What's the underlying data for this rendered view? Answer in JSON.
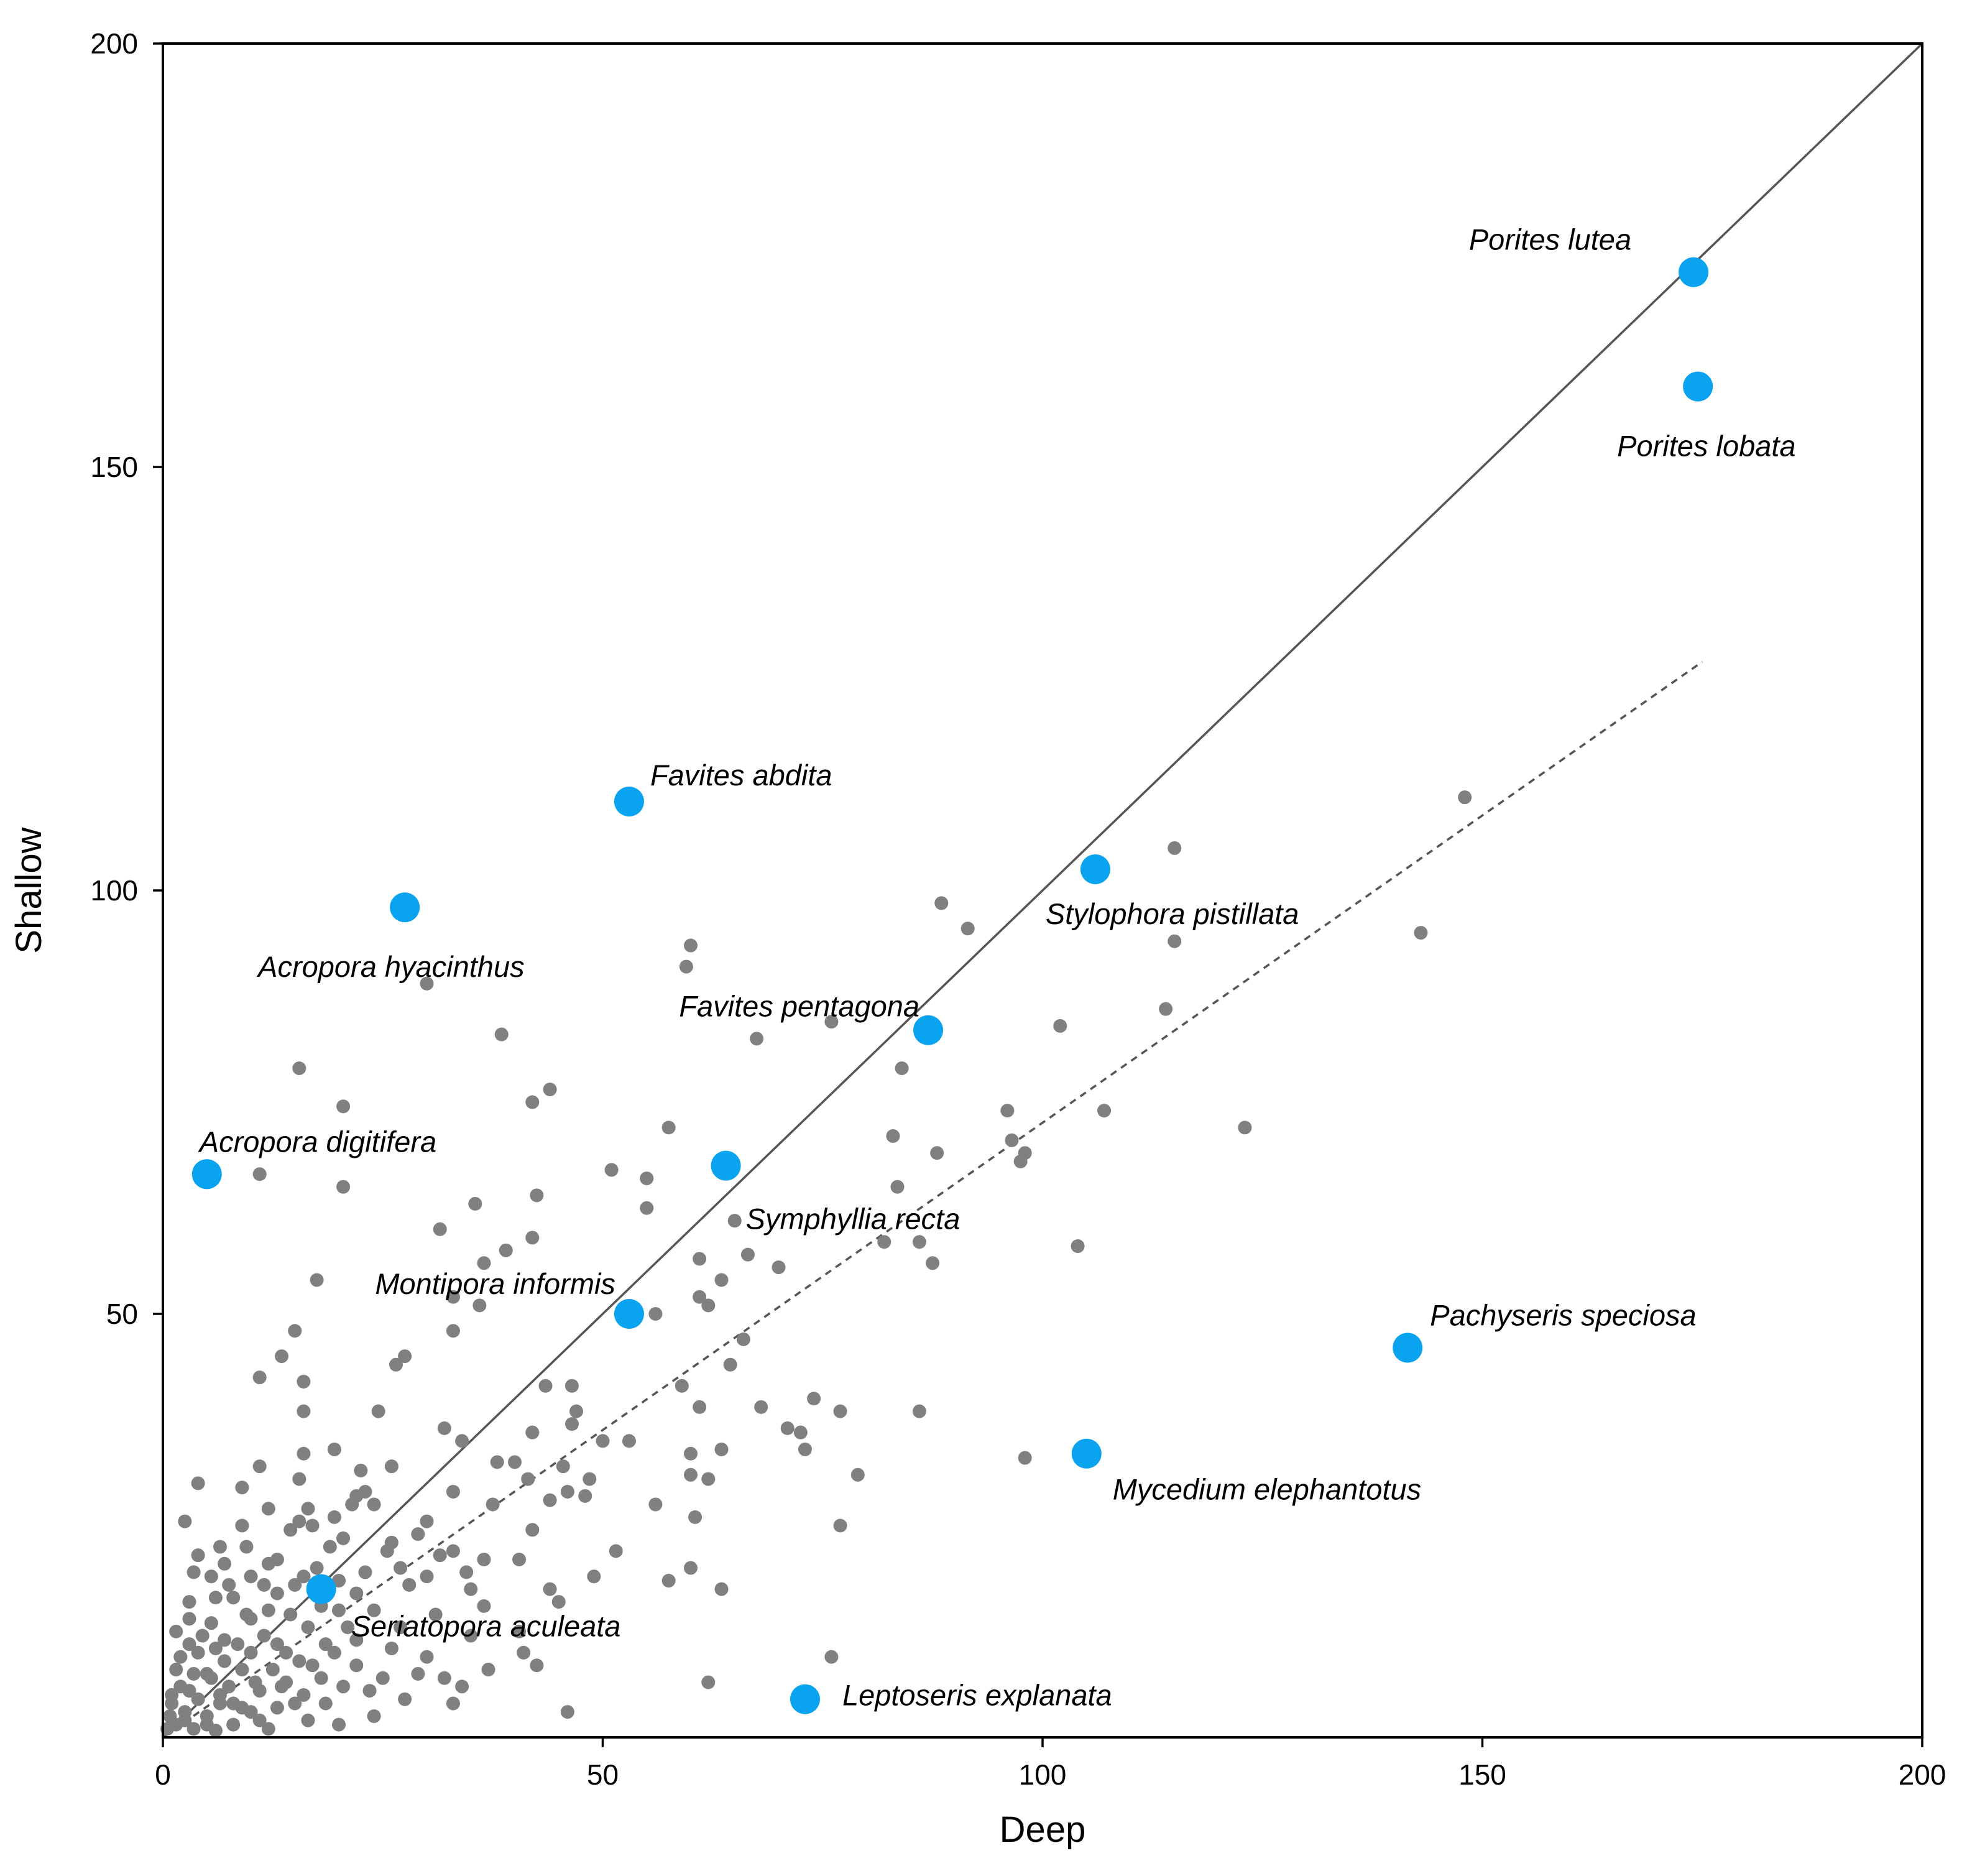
{
  "chart_data": {
    "type": "scatter",
    "title": "",
    "xlabel": "Deep",
    "ylabel": "Shallow",
    "xlim": [
      0,
      200
    ],
    "ylim": [
      0,
      200
    ],
    "x_ticks": [
      0,
      50,
      100,
      150,
      200
    ],
    "y_ticks": [
      0,
      50,
      100,
      150,
      200
    ],
    "x_tick_labels": [
      "0",
      "50",
      "100",
      "150",
      "200"
    ],
    "y_tick_labels": [
      "0",
      "50",
      "100",
      "150",
      "200"
    ],
    "grid": false,
    "colors": {
      "highlight": "#0aa3f0",
      "background_points": "#808080",
      "line": "#555555"
    },
    "lines": [
      {
        "name": "1:1 line",
        "style": "solid",
        "x": [
          0,
          200
        ],
        "y": [
          0,
          200
        ]
      },
      {
        "name": "regression fit",
        "style": "dashed",
        "x": [
          0,
          175
        ],
        "y": [
          0,
          127
        ]
      }
    ],
    "highlighted_species": [
      {
        "name": "Porites lutea",
        "x": 174,
        "y": 173,
        "label_side": "above-left"
      },
      {
        "name": "Porites lobata",
        "x": 174.5,
        "y": 159.5,
        "label_side": "below-left"
      },
      {
        "name": "Favites abdita",
        "x": 53,
        "y": 110.5,
        "label_side": "above-right"
      },
      {
        "name": "Stylophora pistillata",
        "x": 106,
        "y": 102.5,
        "label_side": "below"
      },
      {
        "name": "Acropora hyacinthus",
        "x": 27.5,
        "y": 98,
        "label_side": "below"
      },
      {
        "name": "Favites pentagona",
        "x": 87,
        "y": 83.5,
        "label_side": "above-left"
      },
      {
        "name": "Symphyllia recta",
        "x": 64,
        "y": 67.5,
        "label_side": "below-right"
      },
      {
        "name": "Acropora digitifera",
        "x": 5,
        "y": 66.5,
        "label_side": "above-right"
      },
      {
        "name": "Montipora informis",
        "x": 53,
        "y": 50,
        "label_side": "above-left"
      },
      {
        "name": "Pachyseris speciosa",
        "x": 141.5,
        "y": 46,
        "label_side": "above-right"
      },
      {
        "name": "Mycedium elephantotus",
        "x": 105,
        "y": 33.5,
        "label_side": "below-right"
      },
      {
        "name": "Seriatopora aculeata",
        "x": 18,
        "y": 17.5,
        "label_side": "below-right"
      },
      {
        "name": "Leptoseris explanata",
        "x": 73,
        "y": 4.5,
        "label_side": "right"
      }
    ],
    "background_points": [
      [
        148,
        111
      ],
      [
        115,
        105
      ],
      [
        88.5,
        98.5
      ],
      [
        91.5,
        95.5
      ],
      [
        143,
        95
      ],
      [
        60,
        93.5
      ],
      [
        115,
        94
      ],
      [
        59.5,
        91
      ],
      [
        30,
        89
      ],
      [
        114,
        86
      ],
      [
        38.5,
        83
      ],
      [
        76,
        84.5
      ],
      [
        102,
        84
      ],
      [
        67.5,
        82.5
      ],
      [
        84,
        79
      ],
      [
        15.5,
        79
      ],
      [
        44,
        76.5
      ],
      [
        42,
        75
      ],
      [
        20.5,
        74.5
      ],
      [
        107,
        74
      ],
      [
        96,
        74
      ],
      [
        123,
        72
      ],
      [
        57.5,
        72
      ],
      [
        83,
        71
      ],
      [
        96.5,
        70.5
      ],
      [
        98,
        69
      ],
      [
        88,
        69
      ],
      [
        97.5,
        68
      ],
      [
        51,
        67
      ],
      [
        55,
        66
      ],
      [
        11,
        66.5
      ],
      [
        20.5,
        65
      ],
      [
        83.5,
        65
      ],
      [
        42.5,
        64
      ],
      [
        35.5,
        63
      ],
      [
        55,
        62.5
      ],
      [
        65,
        61
      ],
      [
        31.5,
        60
      ],
      [
        42,
        59
      ],
      [
        82,
        58.5
      ],
      [
        86,
        58.5
      ],
      [
        104,
        58
      ],
      [
        39,
        57.5
      ],
      [
        66.5,
        57
      ],
      [
        61,
        56.5
      ],
      [
        36.5,
        56
      ],
      [
        87.5,
        56
      ],
      [
        70,
        55.5
      ],
      [
        17.5,
        54
      ],
      [
        63.5,
        54
      ],
      [
        61,
        52
      ],
      [
        33,
        52
      ],
      [
        62,
        51
      ],
      [
        36,
        51
      ],
      [
        56,
        50
      ],
      [
        33,
        48
      ],
      [
        15,
        48
      ],
      [
        66,
        47
      ],
      [
        13.5,
        45
      ],
      [
        27.5,
        45
      ],
      [
        26.5,
        44
      ],
      [
        64.5,
        44
      ],
      [
        11,
        42.5
      ],
      [
        16,
        42
      ],
      [
        46.5,
        41.5
      ],
      [
        43.5,
        41.5
      ],
      [
        59,
        41.5
      ],
      [
        74,
        40
      ],
      [
        61,
        39
      ],
      [
        68,
        39
      ],
      [
        47,
        38.5
      ],
      [
        16,
        38.5
      ],
      [
        24.5,
        38.5
      ],
      [
        77,
        38.5
      ],
      [
        86,
        38.5
      ],
      [
        71,
        36.5
      ],
      [
        32,
        36.5
      ],
      [
        46.5,
        37
      ],
      [
        42,
        36
      ],
      [
        72.5,
        36
      ],
      [
        50,
        35
      ],
      [
        53,
        35
      ],
      [
        34,
        35
      ],
      [
        73,
        34
      ],
      [
        19.5,
        34
      ],
      [
        63.5,
        34
      ],
      [
        60,
        33.5
      ],
      [
        16,
        33.5
      ],
      [
        98,
        33
      ],
      [
        38,
        32.5
      ],
      [
        40,
        32.5
      ],
      [
        45.5,
        32
      ],
      [
        11,
        32
      ],
      [
        26,
        32
      ],
      [
        22.5,
        31.5
      ],
      [
        60,
        31
      ],
      [
        79,
        31
      ],
      [
        48.5,
        30.5
      ],
      [
        62,
        30.5
      ],
      [
        15.5,
        30.5
      ],
      [
        41.5,
        30.5
      ],
      [
        4,
        30
      ],
      [
        9,
        29.5
      ],
      [
        23,
        29
      ],
      [
        22,
        28.5
      ],
      [
        33,
        29
      ],
      [
        46,
        29
      ],
      [
        48,
        28.5
      ],
      [
        44,
        28
      ],
      [
        37.5,
        27.5
      ],
      [
        21.5,
        27.5
      ],
      [
        56,
        27.5
      ],
      [
        12,
        27
      ],
      [
        24,
        27.5
      ],
      [
        16.5,
        27
      ],
      [
        19.5,
        26
      ],
      [
        60.5,
        26
      ],
      [
        15.5,
        25.5
      ],
      [
        30,
        25.5
      ],
      [
        2.5,
        25.5
      ],
      [
        17,
        25
      ],
      [
        42,
        24.5
      ],
      [
        29,
        24
      ],
      [
        14.5,
        24.5
      ],
      [
        77,
        25
      ],
      [
        20.5,
        23.5
      ],
      [
        26,
        23
      ],
      [
        19,
        22.5
      ],
      [
        6.5,
        22.5
      ],
      [
        9.5,
        22.5
      ],
      [
        25.5,
        22
      ],
      [
        33,
        22
      ],
      [
        51.5,
        22
      ],
      [
        4,
        21.5
      ],
      [
        31.5,
        21.5
      ],
      [
        36.5,
        21
      ],
      [
        12,
        20.5
      ],
      [
        40.5,
        21
      ],
      [
        7,
        20.5
      ],
      [
        27,
        20
      ],
      [
        3.5,
        19.5
      ],
      [
        17.5,
        20
      ],
      [
        60,
        20
      ],
      [
        34.5,
        19.5
      ],
      [
        30,
        19
      ],
      [
        10,
        19
      ],
      [
        5.5,
        19
      ],
      [
        49,
        19
      ],
      [
        20,
        18.5
      ],
      [
        57.5,
        18.5
      ],
      [
        11.5,
        18
      ],
      [
        28,
        18
      ],
      [
        15,
        18
      ],
      [
        35,
        17.5
      ],
      [
        63.5,
        17.5
      ],
      [
        44,
        17.5
      ],
      [
        22,
        17
      ],
      [
        13,
        17
      ],
      [
        8,
        16.5
      ],
      [
        3,
        16
      ],
      [
        45,
        16
      ],
      [
        36.5,
        15.5
      ],
      [
        24,
        15
      ],
      [
        20,
        15
      ],
      [
        31,
        14.5
      ],
      [
        14.5,
        14.5
      ],
      [
        10,
        14
      ],
      [
        5.5,
        13.5
      ],
      [
        16.5,
        13
      ],
      [
        27,
        13
      ],
      [
        40.5,
        12.5
      ],
      [
        35,
        12
      ],
      [
        7,
        11.5
      ],
      [
        22,
        11.5
      ],
      [
        18.5,
        11
      ],
      [
        13,
        11
      ],
      [
        26,
        10.5
      ],
      [
        10,
        10
      ],
      [
        4,
        10
      ],
      [
        41,
        10
      ],
      [
        30,
        9.5
      ],
      [
        76,
        9.5
      ],
      [
        42.5,
        8.5
      ],
      [
        15.5,
        9
      ],
      [
        22,
        8.5
      ],
      [
        37,
        8
      ],
      [
        9,
        8
      ],
      [
        1.5,
        8
      ],
      [
        29,
        7.5
      ],
      [
        5,
        7.5
      ],
      [
        18,
        7
      ],
      [
        25,
        7
      ],
      [
        32,
        7
      ],
      [
        62,
        6.5
      ],
      [
        14,
        6.5
      ],
      [
        34,
        6
      ],
      [
        7.5,
        6
      ],
      [
        3,
        5.5
      ],
      [
        20.5,
        6
      ],
      [
        11,
        5.5
      ],
      [
        23.5,
        5.5
      ],
      [
        16,
        5
      ],
      [
        1,
        5
      ],
      [
        27.5,
        4.5
      ],
      [
        33,
        4
      ],
      [
        6.5,
        4
      ],
      [
        18.5,
        4
      ],
      [
        9,
        3.5
      ],
      [
        13,
        3.5
      ],
      [
        2.5,
        3
      ],
      [
        46,
        3
      ],
      [
        24,
        2.5
      ],
      [
        5,
        2.5
      ],
      [
        11,
        2
      ],
      [
        16.5,
        2
      ],
      [
        1.5,
        1.5
      ],
      [
        8,
        1.5
      ],
      [
        3.5,
        1
      ],
      [
        20,
        1.5
      ],
      [
        12,
        1
      ],
      [
        6,
        0.8
      ],
      [
        2,
        9.5
      ],
      [
        4.5,
        12
      ],
      [
        8.5,
        11
      ],
      [
        12.5,
        8
      ],
      [
        3,
        14
      ],
      [
        6,
        16.5
      ],
      [
        9.5,
        14.5
      ],
      [
        1.5,
        12.5
      ],
      [
        7,
        9
      ],
      [
        10.5,
        6.5
      ],
      [
        5.5,
        7
      ],
      [
        14,
        10
      ],
      [
        2,
        6
      ],
      [
        4,
        4.5
      ],
      [
        17,
        8.5
      ],
      [
        19.5,
        10
      ],
      [
        21,
        13
      ],
      [
        11.5,
        12
      ],
      [
        0.8,
        2.5
      ],
      [
        3.5,
        7.5
      ],
      [
        6.5,
        5
      ],
      [
        8,
        4
      ],
      [
        10,
        3
      ],
      [
        15,
        4
      ],
      [
        13.5,
        6
      ],
      [
        1,
        4
      ],
      [
        2.5,
        2
      ],
      [
        5,
        1.5
      ],
      [
        18,
        15.5
      ],
      [
        23,
        19.5
      ],
      [
        7.5,
        18
      ],
      [
        13,
        21
      ],
      [
        9,
        25
      ],
      [
        6,
        10.5
      ],
      [
        3,
        11
      ],
      [
        12,
        15
      ],
      [
        16,
        19
      ],
      [
        0.5,
        1
      ]
    ]
  }
}
